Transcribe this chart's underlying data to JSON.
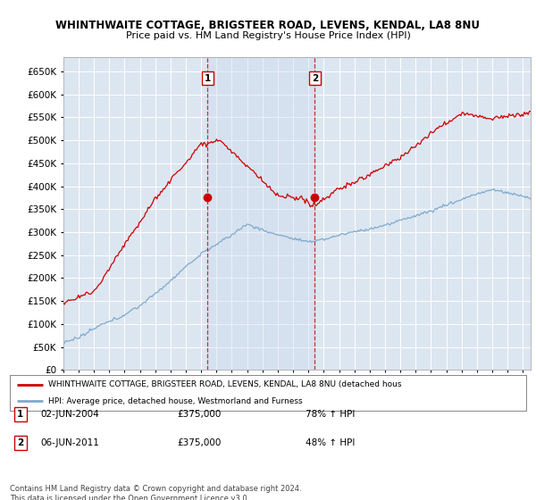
{
  "title1": "WHINTHWAITE COTTAGE, BRIGSTEER ROAD, LEVENS, KENDAL, LA8 8NU",
  "title2": "Price paid vs. HM Land Registry's House Price Index (HPI)",
  "ylabel_ticks": [
    "£0",
    "£50K",
    "£100K",
    "£150K",
    "£200K",
    "£250K",
    "£300K",
    "£350K",
    "£400K",
    "£450K",
    "£500K",
    "£550K",
    "£600K",
    "£650K"
  ],
  "ytick_values": [
    0,
    50000,
    100000,
    150000,
    200000,
    250000,
    300000,
    350000,
    400000,
    450000,
    500000,
    550000,
    600000,
    650000
  ],
  "ylim": [
    0,
    680000
  ],
  "xlim_start": 1995.0,
  "xlim_end": 2025.5,
  "purchase1_x": 2004.42,
  "purchase1_y": 375000,
  "purchase2_x": 2011.42,
  "purchase2_y": 375000,
  "red_color": "#cc0000",
  "blue_color": "#7faacc",
  "shade_color": "#ddeeff",
  "background_color": "#dce6f1",
  "legend_label_red": "WHINTHWAITE COTTAGE, BRIGSTEER ROAD, LEVENS, KENDAL, LA8 8NU (detached hous",
  "legend_label_blue": "HPI: Average price, detached house, Westmorland and Furness",
  "info1_date": "02-JUN-2004",
  "info1_price": "£375,000",
  "info1_hpi": "78% ↑ HPI",
  "info2_date": "06-JUN-2011",
  "info2_price": "£375,000",
  "info2_hpi": "48% ↑ HPI",
  "footer": "Contains HM Land Registry data © Crown copyright and database right 2024.\nThis data is licensed under the Open Government Licence v3.0."
}
